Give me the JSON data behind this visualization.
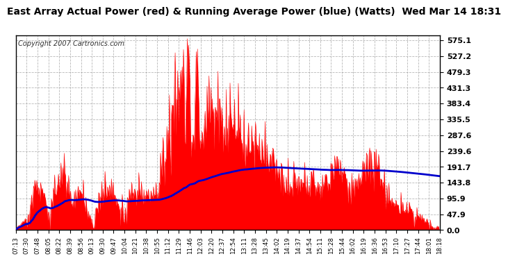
{
  "title": "East Array Actual Power (red) & Running Average Power (blue) (Watts)  Wed Mar 14 18:31",
  "copyright": "Copyright 2007 Cartronics.com",
  "yticks": [
    0.0,
    47.9,
    95.9,
    143.8,
    191.7,
    239.6,
    287.6,
    335.5,
    383.4,
    431.3,
    479.3,
    527.2,
    575.1
  ],
  "ymax": 590,
  "ymin": 0,
  "bg_color": "#ffffff",
  "plot_bg_color": "#ffffff",
  "grid_color": "#999999",
  "actual_color": "#ff0000",
  "avg_color": "#0000cc",
  "title_fontsize": 10,
  "copyright_fontsize": 7,
  "x_tick_labels": [
    "07:13",
    "07:30",
    "07:48",
    "08:05",
    "08:22",
    "08:39",
    "08:56",
    "09:13",
    "09:30",
    "09:47",
    "10:04",
    "10:21",
    "10:38",
    "10:55",
    "11:12",
    "11:29",
    "11:46",
    "12:03",
    "12:20",
    "12:37",
    "12:54",
    "13:11",
    "13:28",
    "13:45",
    "14:02",
    "14:19",
    "14:37",
    "14:54",
    "15:11",
    "15:28",
    "15:44",
    "16:02",
    "16:19",
    "16:36",
    "16:53",
    "17:10",
    "17:27",
    "17:44",
    "18:01",
    "18:18"
  ]
}
